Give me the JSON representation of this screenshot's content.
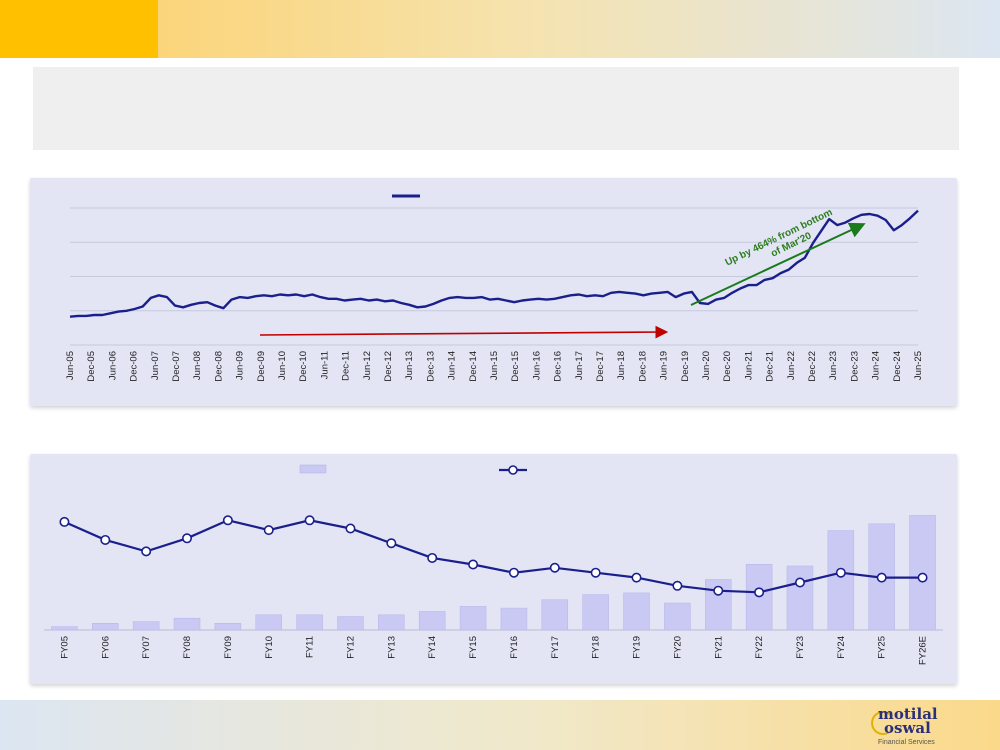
{
  "header": {
    "title": "",
    "subtitle": ""
  },
  "logo": {
    "line1": "motilal",
    "line2": "oswal",
    "tagline": "Financial Services"
  },
  "colors": {
    "line": "#1a1f8c",
    "bar": "#c9c9f4",
    "green_arrow": "#1b7a1b",
    "red_arrow": "#c00000",
    "accent": "#ffc000"
  },
  "chart_data": [
    {
      "type": "line",
      "title": "",
      "series": [
        {
          "name": "",
          "values": [
            33,
            34,
            34,
            35,
            35,
            37,
            39,
            40,
            42,
            45,
            55,
            58,
            56,
            46,
            44,
            47,
            49,
            50,
            46,
            43,
            53,
            56,
            55,
            57,
            58,
            57,
            59,
            58,
            59,
            57,
            59,
            56,
            54,
            54,
            52,
            53,
            54,
            52,
            53,
            51,
            52,
            49,
            47,
            44,
            45,
            48,
            52,
            55,
            56,
            55,
            55,
            56,
            53,
            54,
            52,
            50,
            52,
            53,
            54,
            53,
            54,
            56,
            58,
            59,
            57,
            58,
            57,
            61,
            62,
            61,
            60,
            58,
            60,
            61,
            62,
            56,
            60,
            62,
            49,
            48,
            53,
            55,
            61,
            66,
            70,
            70,
            76,
            78,
            84,
            88,
            96,
            102,
            119,
            133,
            147,
            140,
            143,
            148,
            152,
            153,
            151,
            146,
            134,
            140,
            148,
            157
          ]
        }
      ],
      "x_ticks": [
        "Jun-05",
        "Dec-05",
        "Jun-06",
        "Dec-06",
        "Jun-07",
        "Dec-07",
        "Jun-08",
        "Dec-08",
        "Jun-09",
        "Dec-09",
        "Jun-10",
        "Dec-10",
        "Jun-11",
        "Dec-11",
        "Jun-12",
        "Dec-12",
        "Jun-13",
        "Dec-13",
        "Jun-14",
        "Dec-14",
        "Jun-15",
        "Dec-15",
        "Jun-16",
        "Dec-16",
        "Jun-17",
        "Dec-17",
        "Jun-18",
        "Dec-18",
        "Jun-19",
        "Dec-19",
        "Jun-20",
        "Dec-20",
        "Jun-21",
        "Dec-21",
        "Jun-22",
        "Dec-22",
        "Jun-23",
        "Dec-23",
        "Jun-24",
        "Dec-24",
        "Jun-25"
      ],
      "grid": true,
      "annotations": [
        {
          "text": "Up by 464% from bottom of Mar'20"
        }
      ]
    },
    {
      "type": "bar+line",
      "categories": [
        "FY05",
        "FY06",
        "FY07",
        "FY08",
        "FY09",
        "FY10",
        "FY11",
        "FY12",
        "FY13",
        "FY14",
        "FY15",
        "FY16",
        "FY17",
        "FY18",
        "FY19",
        "FY20",
        "FY21",
        "FY22",
        "FY23",
        "FY24",
        "FY25",
        "FY26E"
      ],
      "series": [
        {
          "name": "",
          "type": "bar",
          "values": [
            2,
            4,
            5,
            7,
            4,
            9,
            9,
            8,
            9,
            11,
            14,
            13,
            18,
            21,
            22,
            16,
            30,
            39,
            38,
            59,
            63,
            68
          ]
        },
        {
          "name": "",
          "type": "line",
          "values": [
            66,
            55,
            48,
            56,
            67,
            61,
            67,
            62,
            53,
            44,
            40,
            35,
            38,
            35,
            32,
            27,
            24,
            23,
            29,
            35,
            32,
            32
          ]
        }
      ],
      "grid": false
    }
  ]
}
